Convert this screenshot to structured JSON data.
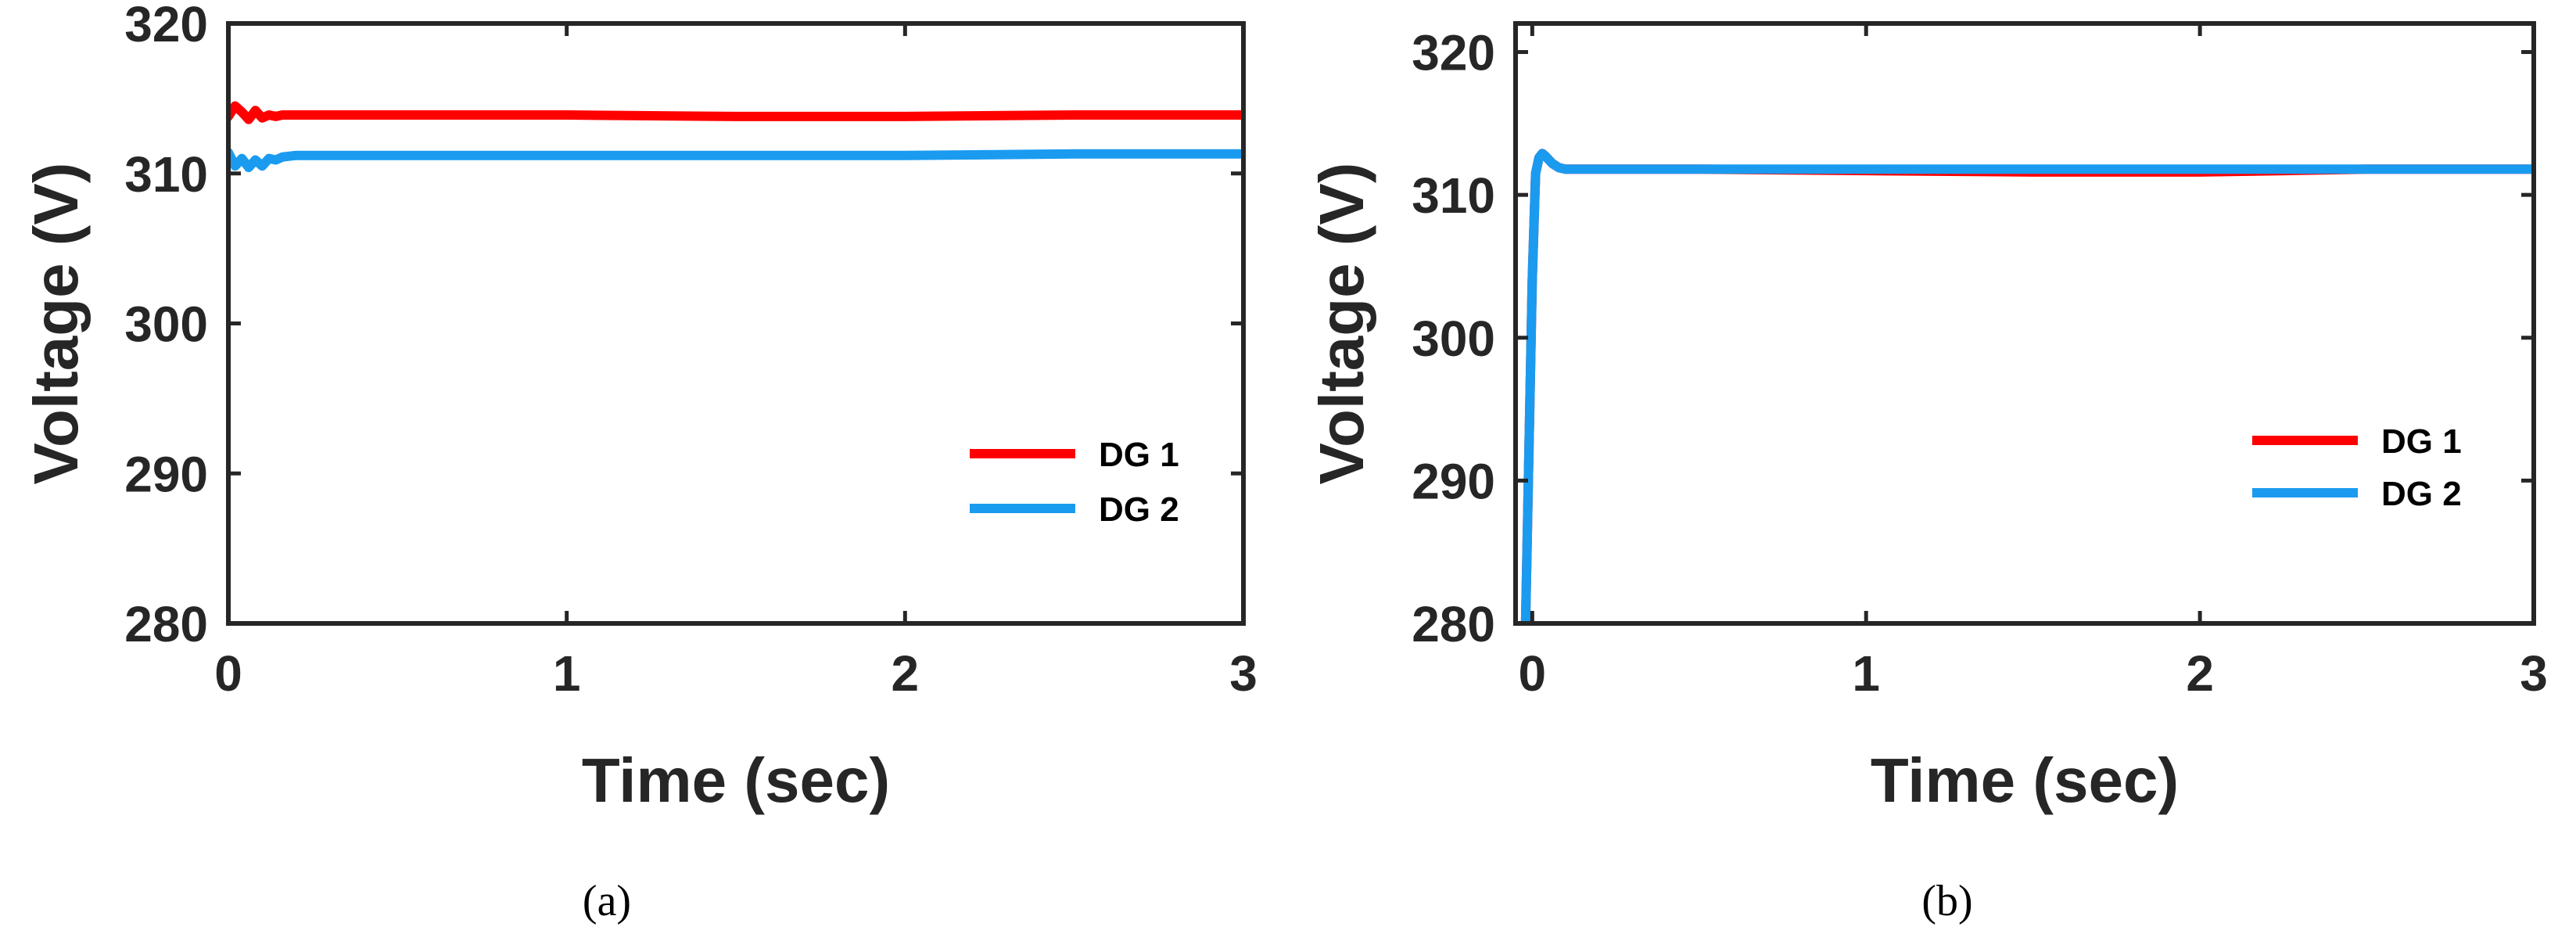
{
  "chart_data": [
    {
      "type": "line",
      "caption": "(a)",
      "xlabel": "Time (sec)",
      "ylabel": "Voltage (V)",
      "xlim": [
        0,
        3
      ],
      "ylim": [
        280,
        320
      ],
      "xticks": [
        0,
        1,
        2,
        3
      ],
      "yticks": [
        280,
        290,
        300,
        310,
        320
      ],
      "grid": false,
      "legend_position": "lower-right",
      "series": [
        {
          "name": "DG 1",
          "color": "#ff0000",
          "x": [
            0,
            0.02,
            0.04,
            0.06,
            0.08,
            0.1,
            0.12,
            0.14,
            0.16,
            0.2,
            0.5,
            1.0,
            1.5,
            2.0,
            2.5,
            3.0
          ],
          "y": [
            313.8,
            314.5,
            314.1,
            313.6,
            314.2,
            313.7,
            313.9,
            313.8,
            313.9,
            313.9,
            313.9,
            313.9,
            313.8,
            313.8,
            313.9,
            313.9
          ]
        },
        {
          "name": "DG 2",
          "color": "#1a9bf0",
          "x": [
            0,
            0.02,
            0.04,
            0.06,
            0.08,
            0.1,
            0.12,
            0.14,
            0.16,
            0.2,
            0.5,
            1.0,
            1.5,
            2.0,
            2.5,
            3.0
          ],
          "y": [
            311.4,
            310.5,
            311.0,
            310.4,
            310.9,
            310.5,
            311.0,
            310.9,
            311.1,
            311.2,
            311.2,
            311.2,
            311.2,
            311.2,
            311.3,
            311.3
          ]
        }
      ]
    },
    {
      "type": "line",
      "caption": "(b)",
      "xlabel": "Time (sec)",
      "ylabel": "Voltage (V)",
      "xlim": [
        -0.05,
        3
      ],
      "ylim": [
        280,
        322
      ],
      "xticks": [
        0,
        1,
        2,
        3
      ],
      "yticks": [
        280,
        290,
        300,
        310,
        320
      ],
      "grid": false,
      "legend_position": "center-right",
      "series": [
        {
          "name": "DG 1",
          "color": "#ff0000",
          "x": [
            -0.02,
            0.0,
            0.01,
            0.02,
            0.03,
            0.04,
            0.06,
            0.08,
            0.1,
            0.2,
            0.5,
            1.0,
            1.5,
            2.0,
            2.5,
            3.0
          ],
          "y": [
            280,
            304,
            311.5,
            312.6,
            312.9,
            312.7,
            312.2,
            311.9,
            311.8,
            311.8,
            311.8,
            311.7,
            311.6,
            311.6,
            311.8,
            311.8
          ]
        },
        {
          "name": "DG 2",
          "color": "#1a9bf0",
          "x": [
            -0.02,
            0.0,
            0.01,
            0.02,
            0.03,
            0.04,
            0.06,
            0.08,
            0.1,
            0.2,
            0.5,
            1.0,
            1.5,
            2.0,
            2.5,
            3.0
          ],
          "y": [
            280,
            304,
            311.5,
            312.6,
            312.9,
            312.7,
            312.2,
            311.9,
            311.8,
            311.8,
            311.8,
            311.8,
            311.8,
            311.8,
            311.8,
            311.8
          ]
        }
      ]
    }
  ]
}
